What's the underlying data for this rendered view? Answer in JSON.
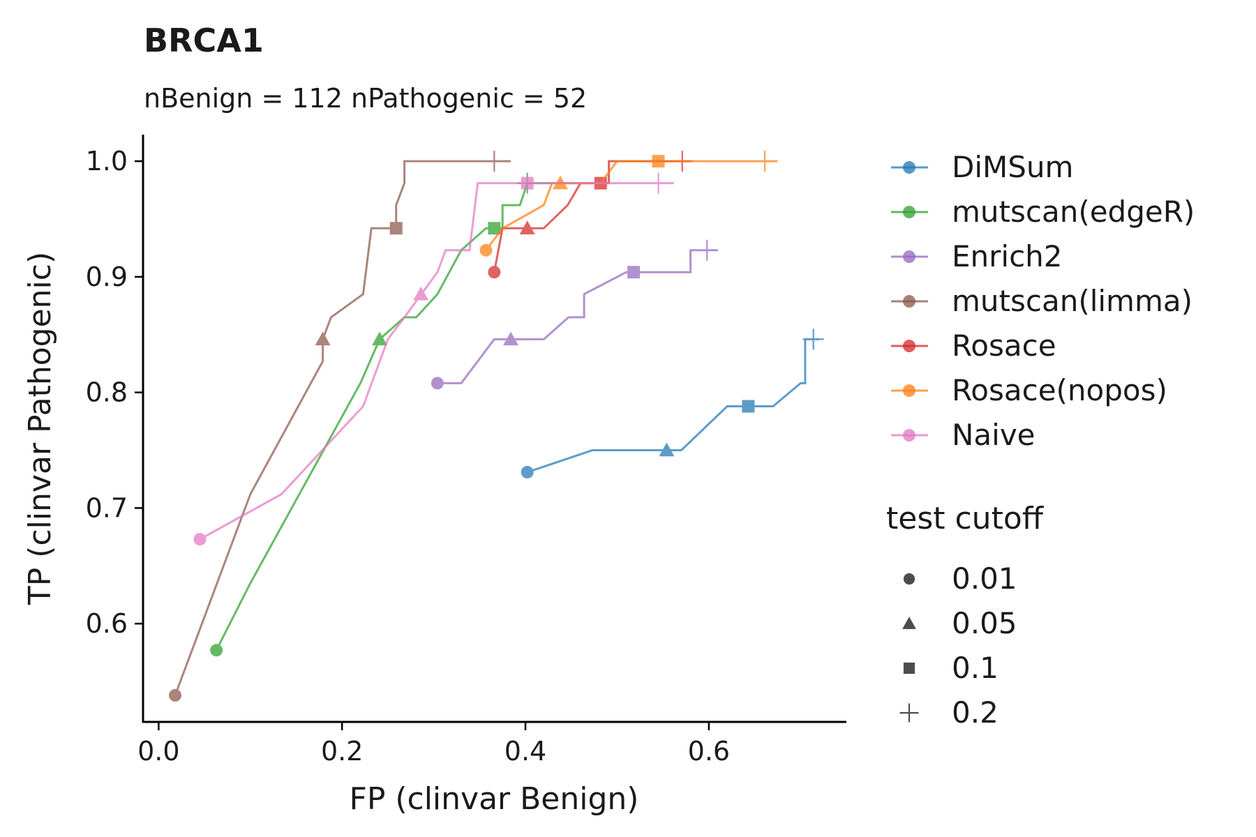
{
  "chart_data": {
    "type": "line",
    "title": "BRCA1",
    "subtitle": "nBenign = 112 nPathogenic = 52",
    "xlabel": "FP (clinvar Benign)",
    "ylabel": "TP (clinvar Pathogenic)",
    "xlim": [
      -0.017,
      0.75
    ],
    "ylim": [
      0.515,
      1.023
    ],
    "xticks": [
      0.0,
      0.2,
      0.4,
      0.6
    ],
    "xtick_labels": [
      "0.0",
      "0.2",
      "0.4",
      "0.6"
    ],
    "yticks": [
      0.6,
      0.7,
      0.8,
      0.9,
      1.0
    ],
    "ytick_labels": [
      "0.6",
      "0.7",
      "0.8",
      "0.9",
      "1.0"
    ],
    "grid": false,
    "legend_position": "right",
    "shape_legend_title": "test cutoff",
    "cutoffs": [
      {
        "label": "0.01",
        "marker": "circle"
      },
      {
        "label": "0.05",
        "marker": "triangle"
      },
      {
        "label": "0.1",
        "marker": "square"
      },
      {
        "label": "0.2",
        "marker": "plus"
      }
    ],
    "series": [
      {
        "name": "DiMSum",
        "color": "#1f77b4",
        "line": [
          [
            0.402,
            0.731
          ],
          [
            0.473,
            0.75
          ],
          [
            0.57,
            0.75
          ],
          [
            0.62,
            0.788
          ],
          [
            0.67,
            0.788
          ],
          [
            0.7,
            0.808
          ],
          [
            0.705,
            0.808
          ],
          [
            0.705,
            0.846
          ],
          [
            0.72,
            0.846
          ]
        ],
        "points": [
          [
            0.402,
            0.731
          ],
          [
            0.554,
            0.75
          ],
          [
            0.643,
            0.788
          ],
          [
            0.714,
            0.846
          ]
        ]
      },
      {
        "name": "mutscan(edgeR)",
        "color": "#2ca02c",
        "line": [
          [
            0.063,
            0.577
          ],
          [
            0.1,
            0.635
          ],
          [
            0.22,
            0.808
          ],
          [
            0.241,
            0.846
          ],
          [
            0.268,
            0.865
          ],
          [
            0.281,
            0.865
          ],
          [
            0.304,
            0.885
          ],
          [
            0.33,
            0.923
          ],
          [
            0.357,
            0.942
          ],
          [
            0.375,
            0.942
          ],
          [
            0.375,
            0.962
          ],
          [
            0.394,
            0.962
          ],
          [
            0.402,
            0.981
          ],
          [
            0.473,
            0.981
          ]
        ],
        "points": [
          [
            0.063,
            0.577
          ],
          [
            0.241,
            0.846
          ],
          [
            0.366,
            0.942
          ],
          [
            0.402,
            0.981
          ]
        ]
      },
      {
        "name": "Enrich2",
        "color": "#9467bd",
        "line": [
          [
            0.304,
            0.808
          ],
          [
            0.33,
            0.808
          ],
          [
            0.366,
            0.846
          ],
          [
            0.42,
            0.846
          ],
          [
            0.447,
            0.865
          ],
          [
            0.464,
            0.865
          ],
          [
            0.464,
            0.885
          ],
          [
            0.51,
            0.904
          ],
          [
            0.58,
            0.904
          ],
          [
            0.58,
            0.923
          ],
          [
            0.61,
            0.923
          ]
        ],
        "points": [
          [
            0.304,
            0.808
          ],
          [
            0.384,
            0.846
          ],
          [
            0.518,
            0.904
          ],
          [
            0.598,
            0.923
          ]
        ]
      },
      {
        "name": "mutscan(limma)",
        "color": "#8c564b",
        "line": [
          [
            0.018,
            0.538
          ],
          [
            0.1,
            0.712
          ],
          [
            0.179,
            0.827
          ],
          [
            0.179,
            0.846
          ],
          [
            0.188,
            0.865
          ],
          [
            0.223,
            0.885
          ],
          [
            0.232,
            0.942
          ],
          [
            0.259,
            0.942
          ],
          [
            0.259,
            0.962
          ],
          [
            0.268,
            0.981
          ],
          [
            0.268,
            1.0
          ],
          [
            0.384,
            1.0
          ]
        ],
        "points": [
          [
            0.018,
            0.538
          ],
          [
            0.179,
            0.846
          ],
          [
            0.259,
            0.942
          ],
          [
            0.366,
            1.0
          ]
        ]
      },
      {
        "name": "Rosace",
        "color": "#d62728",
        "line": [
          [
            0.366,
            0.904
          ],
          [
            0.375,
            0.942
          ],
          [
            0.42,
            0.942
          ],
          [
            0.446,
            0.962
          ],
          [
            0.46,
            0.981
          ],
          [
            0.491,
            0.981
          ],
          [
            0.491,
            1.0
          ],
          [
            0.58,
            1.0
          ]
        ],
        "points": [
          [
            0.366,
            0.904
          ],
          [
            0.402,
            0.942
          ],
          [
            0.482,
            0.981
          ],
          [
            0.571,
            1.0
          ]
        ]
      },
      {
        "name": "Rosace(nopos)",
        "color": "#ff7f0e",
        "line": [
          [
            0.357,
            0.923
          ],
          [
            0.375,
            0.942
          ],
          [
            0.42,
            0.962
          ],
          [
            0.429,
            0.981
          ],
          [
            0.482,
            0.981
          ],
          [
            0.5,
            1.0
          ],
          [
            0.675,
            1.0
          ]
        ],
        "points": [
          [
            0.357,
            0.923
          ],
          [
            0.438,
            0.981
          ],
          [
            0.545,
            1.0
          ],
          [
            0.661,
            1.0
          ]
        ]
      },
      {
        "name": "Naive",
        "color": "#e377c2",
        "line": [
          [
            0.045,
            0.673
          ],
          [
            0.134,
            0.712
          ],
          [
            0.223,
            0.788
          ],
          [
            0.25,
            0.846
          ],
          [
            0.268,
            0.865
          ],
          [
            0.304,
            0.904
          ],
          [
            0.313,
            0.923
          ],
          [
            0.339,
            0.923
          ],
          [
            0.348,
            0.981
          ],
          [
            0.562,
            0.981
          ]
        ],
        "points": [
          [
            0.045,
            0.673
          ],
          [
            0.286,
            0.885
          ],
          [
            0.402,
            0.981
          ],
          [
            0.545,
            0.981
          ]
        ]
      }
    ]
  }
}
